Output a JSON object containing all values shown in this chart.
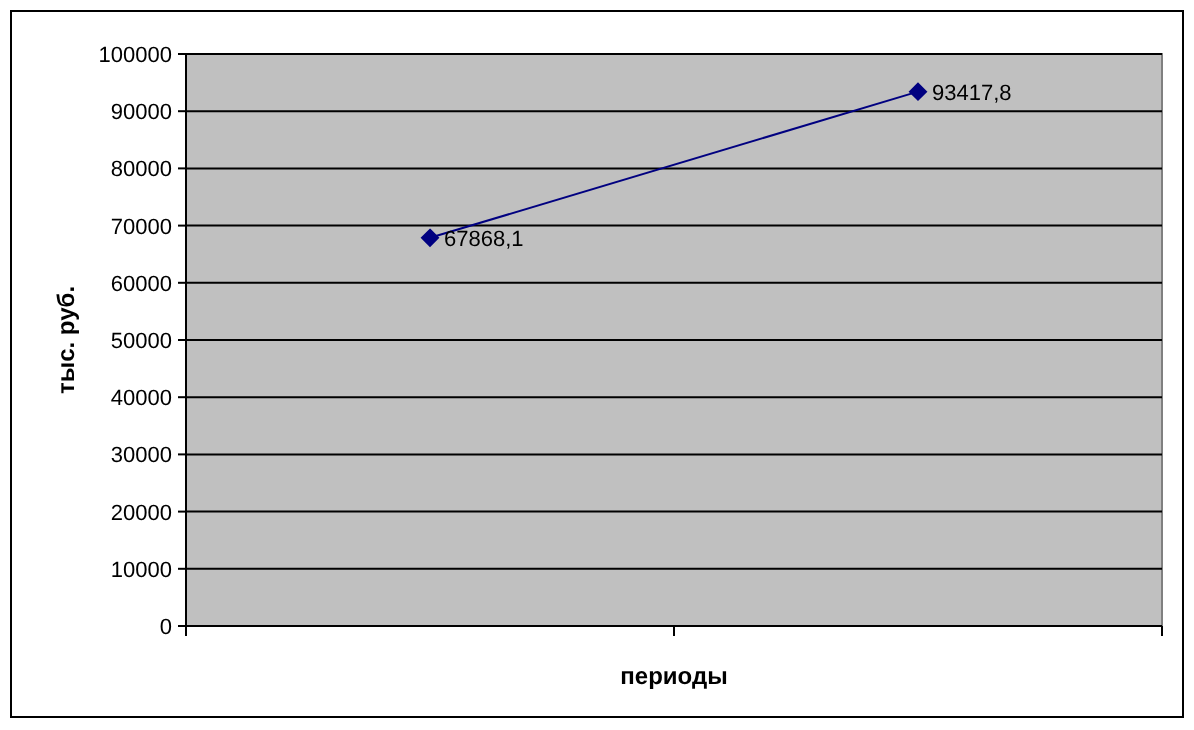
{
  "chart_data": {
    "type": "line",
    "xlabel": "периоды",
    "ylabel": "тыс. руб.",
    "categories": [
      null,
      null
    ],
    "series": [
      {
        "color": "#000080",
        "values": [
          67868.1,
          93417.8
        ],
        "value_labels": [
          "67868,1",
          "93417,8"
        ]
      }
    ],
    "ylim": [
      0,
      100000
    ],
    "yticks": [
      0,
      10000,
      20000,
      30000,
      40000,
      50000,
      60000,
      70000,
      80000,
      90000,
      100000
    ],
    "grid": "y",
    "marker": "diamond",
    "line_style": "solid"
  }
}
